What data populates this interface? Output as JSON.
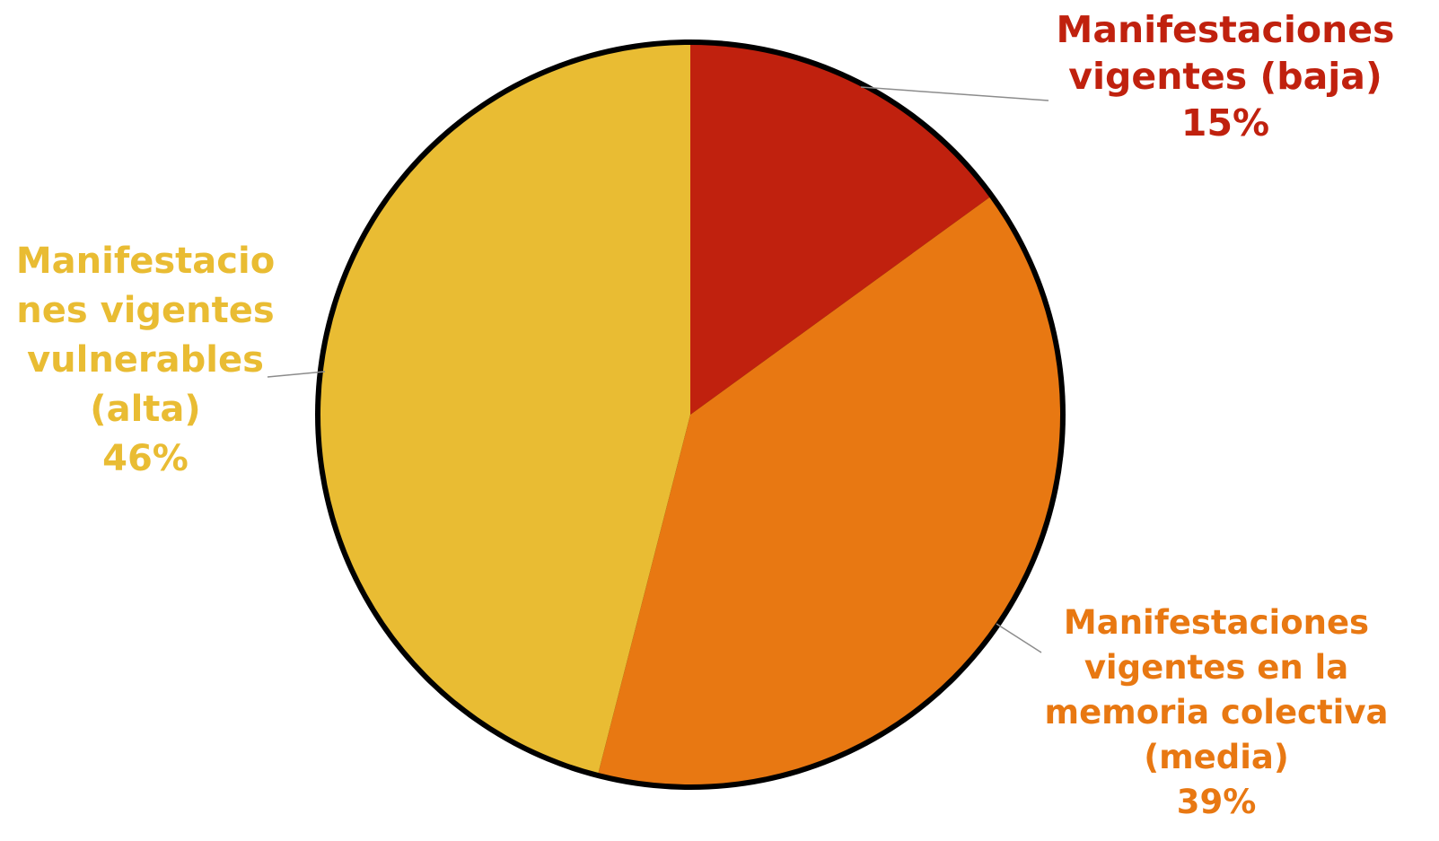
{
  "chart_data": {
    "type": "pie",
    "title": "",
    "start_angle_deg": 0,
    "direction": "clockwise",
    "slices": [
      {
        "label": "Manifestaciones vigentes (baja)",
        "label_lines": [
          "Manifestaciones",
          "vigentes (baja)",
          "15%"
        ],
        "percent_label": "15%",
        "value": 15,
        "color": "#C0210E"
      },
      {
        "label": "Manifestaciones vigentes en la memoria colectiva (media)",
        "label_lines": [
          "Manifestaciones",
          "vigentes en la",
          "memoria colectiva",
          "(media)",
          "39%"
        ],
        "percent_label": "39%",
        "value": 39,
        "color": "#E87812"
      },
      {
        "label": "Manifestacio nes vigentes vulnerables (alta)",
        "label_lines": [
          "Manifestacio",
          "nes vigentes",
          "vulnerables",
          "(alta)",
          "46%"
        ],
        "percent_label": "46%",
        "value": 46,
        "color": "#E9BC33"
      }
    ],
    "outline_color": "#000000",
    "leader_line_color": "#8c8c8c"
  }
}
